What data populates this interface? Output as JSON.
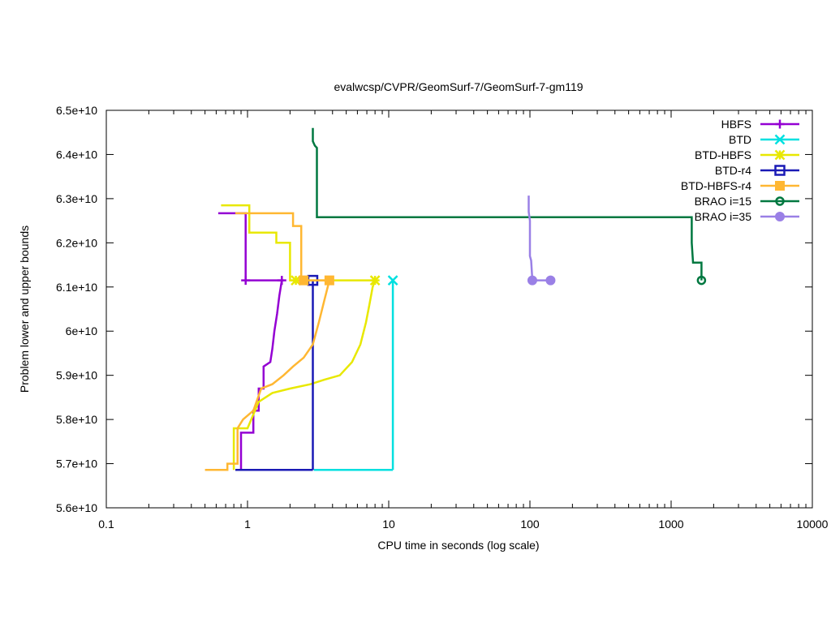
{
  "chart_data": {
    "type": "line",
    "title": "evalwcsp/CVPR/GeomSurf-7/GeomSurf-7-gm119",
    "xlabel": "CPU time in seconds (log scale)",
    "ylabel": "Problem lower and upper bounds",
    "xscale": "log",
    "xlim": [
      0.1,
      10000
    ],
    "ylim": [
      56000000000.0,
      65000000000.0
    ],
    "x_ticks": [
      0.1,
      1,
      10,
      100,
      1000,
      10000
    ],
    "x_tick_labels": [
      "0.1",
      "1",
      "10",
      "100",
      "1000",
      "10000"
    ],
    "y_ticks": [
      56000000000.0,
      57000000000.0,
      58000000000.0,
      59000000000.0,
      60000000000.0,
      61000000000.0,
      62000000000.0,
      63000000000.0,
      64000000000.0,
      65000000000.0
    ],
    "y_tick_labels": [
      "5.6e+10",
      "5.7e+10",
      "5.8e+10",
      "5.9e+10",
      "6e+10",
      "6.1e+10",
      "6.2e+10",
      "6.3e+10",
      "6.4e+10",
      "6.5e+10"
    ],
    "grid": false,
    "legend_position": "top-right",
    "series": [
      {
        "name": "HBFS",
        "color": "#9400d3",
        "marker": "plus",
        "upper": [
          [
            0.62,
            62670000000.0
          ],
          [
            0.97,
            62670000000.0
          ],
          [
            0.97,
            61150000000.0
          ],
          [
            1.8,
            61150000000.0
          ]
        ],
        "lower": [
          [
            0.9,
            56860000000.0
          ],
          [
            0.9,
            57700000000.0
          ],
          [
            1.1,
            57700000000.0
          ],
          [
            1.1,
            58200000000.0
          ],
          [
            1.2,
            58200000000.0
          ],
          [
            1.2,
            58700000000.0
          ],
          [
            1.3,
            58700000000.0
          ],
          [
            1.3,
            59200000000.0
          ],
          [
            1.45,
            59300000000.0
          ],
          [
            1.5,
            59600000000.0
          ],
          [
            1.55,
            60000000000.0
          ],
          [
            1.62,
            60400000000.0
          ],
          [
            1.68,
            60800000000.0
          ],
          [
            1.75,
            61150000000.0
          ]
        ],
        "markers": [
          [
            0.97,
            61150000000.0
          ],
          [
            1.75,
            61150000000.0
          ]
        ]
      },
      {
        "name": "BTD",
        "color": "#00e0e0",
        "marker": "cross",
        "upper": [
          [
            10.7,
            61150000000.0
          ],
          [
            10.7,
            56860000000.0
          ]
        ],
        "lower": [
          [
            2.95,
            56860000000.0
          ],
          [
            10.7,
            56860000000.0
          ]
        ],
        "markers": [
          [
            10.7,
            61150000000.0
          ]
        ]
      },
      {
        "name": "BTD-HBFS",
        "color": "#e8e800",
        "marker": "star",
        "upper": [
          [
            0.65,
            62850000000.0
          ],
          [
            1.03,
            62850000000.0
          ],
          [
            1.03,
            62230000000.0
          ],
          [
            1.6,
            62230000000.0
          ],
          [
            1.6,
            62000000000.0
          ],
          [
            2.0,
            62000000000.0
          ],
          [
            2.0,
            61150000000.0
          ],
          [
            8.0,
            61150000000.0
          ]
        ],
        "lower": [
          [
            0.8,
            56860000000.0
          ],
          [
            0.8,
            57800000000.0
          ],
          [
            1.0,
            57800000000.0
          ],
          [
            1.2,
            58400000000.0
          ],
          [
            1.5,
            58600000000.0
          ],
          [
            2.0,
            58700000000.0
          ],
          [
            2.8,
            58800000000.0
          ],
          [
            3.5,
            58900000000.0
          ],
          [
            4.5,
            59000000000.0
          ],
          [
            5.5,
            59300000000.0
          ],
          [
            6.3,
            59700000000.0
          ],
          [
            6.9,
            60200000000.0
          ],
          [
            7.3,
            60600000000.0
          ],
          [
            7.7,
            61000000000.0
          ],
          [
            8.0,
            61150000000.0
          ]
        ],
        "markers": [
          [
            2.2,
            61150000000.0
          ],
          [
            8.0,
            61150000000.0
          ]
        ]
      },
      {
        "name": "BTD-r4",
        "color": "#1a1ab5",
        "marker": "square-open",
        "upper": [
          [
            2.9,
            61150000000.0
          ],
          [
            2.9,
            56860000000.0
          ]
        ],
        "lower": [
          [
            0.82,
            56860000000.0
          ],
          [
            2.9,
            56860000000.0
          ]
        ],
        "markers": [
          [
            2.9,
            61150000000.0
          ]
        ]
      },
      {
        "name": "BTD-HBFS-r4",
        "color": "#ffb732",
        "marker": "square-filled",
        "upper": [
          [
            0.82,
            62670000000.0
          ],
          [
            2.1,
            62670000000.0
          ],
          [
            2.1,
            62380000000.0
          ],
          [
            2.4,
            62380000000.0
          ],
          [
            2.4,
            61150000000.0
          ],
          [
            3.8,
            61150000000.0
          ]
        ],
        "lower": [
          [
            0.5,
            56860000000.0
          ],
          [
            0.72,
            56860000000.0
          ],
          [
            0.72,
            57000000000.0
          ],
          [
            0.85,
            57000000000.0
          ],
          [
            0.85,
            57800000000.0
          ],
          [
            0.93,
            58000000000.0
          ],
          [
            1.1,
            58200000000.0
          ],
          [
            1.25,
            58700000000.0
          ],
          [
            1.5,
            58800000000.0
          ],
          [
            1.8,
            59000000000.0
          ],
          [
            2.1,
            59200000000.0
          ],
          [
            2.5,
            59400000000.0
          ],
          [
            2.9,
            59700000000.0
          ],
          [
            3.2,
            60200000000.0
          ],
          [
            3.5,
            60700000000.0
          ],
          [
            3.8,
            61150000000.0
          ]
        ],
        "markers": [
          [
            2.5,
            61150000000.0
          ],
          [
            3.8,
            61150000000.0
          ]
        ]
      },
      {
        "name": "BRAO i=15",
        "color": "#007840",
        "marker": "circle-open",
        "upper": [
          [
            2.9,
            64600000000.0
          ],
          [
            2.9,
            64300000000.0
          ],
          [
            3.0,
            64200000000.0
          ],
          [
            3.1,
            64150000000.0
          ],
          [
            3.1,
            62580000000.0
          ],
          [
            1400,
            62580000000.0
          ],
          [
            1400,
            62000000000.0
          ],
          [
            1430,
            61550000000.0
          ],
          [
            1640,
            61550000000.0
          ],
          [
            1640,
            61150000000.0
          ]
        ],
        "lower": [],
        "markers": [
          [
            1640,
            61150000000.0
          ]
        ]
      },
      {
        "name": "BRAO i=35",
        "color": "#9a80e6",
        "marker": "circle-filled",
        "upper": [
          [
            98,
            63070000000.0
          ],
          [
            98,
            62700000000.0
          ],
          [
            100,
            62500000000.0
          ],
          [
            100,
            61700000000.0
          ],
          [
            102,
            61600000000.0
          ],
          [
            104,
            61150000000.0
          ],
          [
            140,
            61150000000.0
          ]
        ],
        "lower": [],
        "markers": [
          [
            104,
            61150000000.0
          ],
          [
            140,
            61150000000.0
          ]
        ]
      }
    ]
  }
}
